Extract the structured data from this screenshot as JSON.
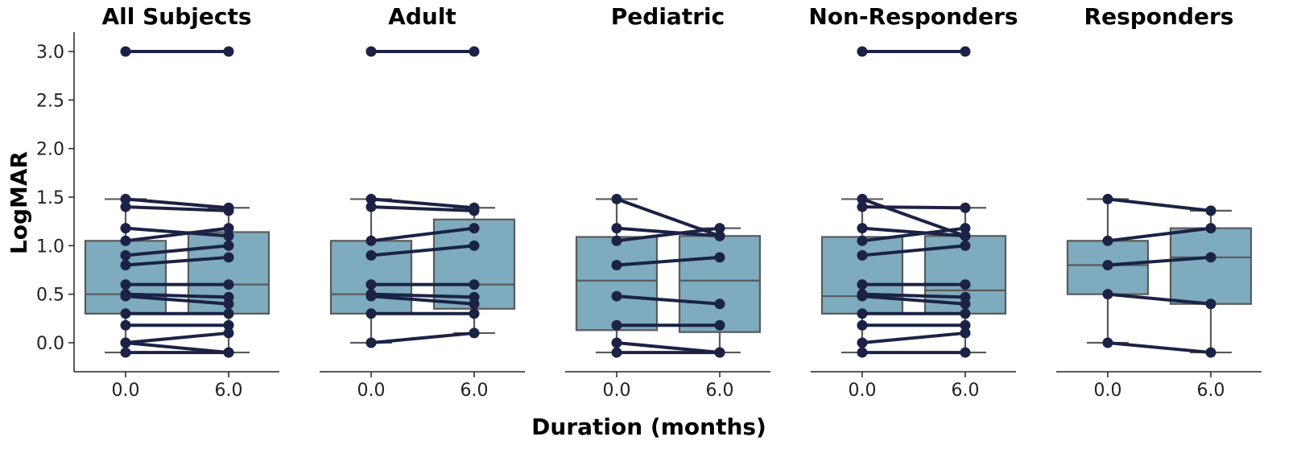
{
  "figure": {
    "xlabel": "Duration (months)",
    "ylabel": "LogMAR"
  },
  "colors": {
    "box_fill": "#7eabbd",
    "box_edge": "#5a5a5a",
    "line": "#1b2245",
    "point": "#1b2245"
  },
  "chart_data": {
    "type": "box",
    "x_categories": [
      "0.0",
      "6.0"
    ],
    "ylabel": "LogMAR",
    "xlabel": "Duration (months)",
    "ylim": [
      -0.3,
      3.2
    ],
    "yticks": [
      0.0,
      0.5,
      1.0,
      1.5,
      2.0,
      2.5,
      3.0
    ],
    "ytick_labels": [
      "0.0",
      "0.5",
      "1.0",
      "1.5",
      "2.0",
      "2.5",
      "3.0"
    ],
    "grid": false,
    "panels": [
      {
        "title": "All Subjects",
        "boxes": [
          {
            "x": "0.0",
            "whisker_low": -0.1,
            "q1": 0.3,
            "median": 0.5,
            "q3": 1.05,
            "whisker_high": 1.48
          },
          {
            "x": "6.0",
            "whisker_low": -0.1,
            "q1": 0.3,
            "median": 0.6,
            "q3": 1.14,
            "whisker_high": 1.39
          }
        ],
        "pairs": [
          [
            3.0,
            3.0
          ],
          [
            1.48,
            1.39
          ],
          [
            1.4,
            1.36
          ],
          [
            1.18,
            1.1
          ],
          [
            1.05,
            1.18
          ],
          [
            0.9,
            1.0
          ],
          [
            0.8,
            0.88
          ],
          [
            0.6,
            0.6
          ],
          [
            0.5,
            0.47
          ],
          [
            0.48,
            0.4
          ],
          [
            0.3,
            0.3
          ],
          [
            0.18,
            0.18
          ],
          [
            0.0,
            0.1
          ],
          [
            0.0,
            -0.1
          ],
          [
            -0.1,
            -0.1
          ]
        ]
      },
      {
        "title": "Adult",
        "boxes": [
          {
            "x": "0.0",
            "whisker_low": 0.0,
            "q1": 0.3,
            "median": 0.5,
            "q3": 1.05,
            "whisker_high": 1.48
          },
          {
            "x": "6.0",
            "whisker_low": 0.1,
            "q1": 0.35,
            "median": 0.6,
            "q3": 1.27,
            "whisker_high": 1.39
          }
        ],
        "pairs": [
          [
            3.0,
            3.0
          ],
          [
            1.48,
            1.39
          ],
          [
            1.4,
            1.36
          ],
          [
            1.05,
            1.18
          ],
          [
            0.9,
            1.0
          ],
          [
            0.6,
            0.6
          ],
          [
            0.5,
            0.47
          ],
          [
            0.48,
            0.4
          ],
          [
            0.3,
            0.3
          ],
          [
            0.0,
            0.1
          ]
        ]
      },
      {
        "title": "Pediatric",
        "boxes": [
          {
            "x": "0.0",
            "whisker_low": -0.1,
            "q1": 0.13,
            "median": 0.64,
            "q3": 1.09,
            "whisker_high": 1.48
          },
          {
            "x": "6.0",
            "whisker_low": -0.1,
            "q1": 0.11,
            "median": 0.64,
            "q3": 1.1,
            "whisker_high": 1.18
          }
        ],
        "pairs": [
          [
            1.48,
            1.1
          ],
          [
            1.18,
            1.1
          ],
          [
            1.05,
            1.18
          ],
          [
            0.8,
            0.88
          ],
          [
            0.48,
            0.4
          ],
          [
            0.18,
            0.18
          ],
          [
            0.0,
            -0.1
          ],
          [
            -0.1,
            -0.1
          ]
        ]
      },
      {
        "title": "Non-Responders",
        "boxes": [
          {
            "x": "0.0",
            "whisker_low": -0.1,
            "q1": 0.3,
            "median": 0.48,
            "q3": 1.09,
            "whisker_high": 1.48
          },
          {
            "x": "6.0",
            "whisker_low": -0.1,
            "q1": 0.3,
            "median": 0.54,
            "q3": 1.1,
            "whisker_high": 1.39
          }
        ],
        "pairs": [
          [
            3.0,
            3.0
          ],
          [
            1.48,
            1.1
          ],
          [
            1.4,
            1.39
          ],
          [
            1.18,
            1.1
          ],
          [
            1.05,
            1.18
          ],
          [
            0.9,
            1.0
          ],
          [
            0.6,
            0.6
          ],
          [
            0.5,
            0.47
          ],
          [
            0.48,
            0.4
          ],
          [
            0.3,
            0.3
          ],
          [
            0.18,
            0.18
          ],
          [
            0.0,
            0.1
          ],
          [
            -0.1,
            -0.1
          ]
        ]
      },
      {
        "title": "Responders",
        "boxes": [
          {
            "x": "0.0",
            "whisker_low": 0.0,
            "q1": 0.5,
            "median": 0.8,
            "q3": 1.05,
            "whisker_high": 1.48
          },
          {
            "x": "6.0",
            "whisker_low": -0.1,
            "q1": 0.4,
            "median": 0.88,
            "q3": 1.18,
            "whisker_high": 1.36
          }
        ],
        "pairs": [
          [
            1.48,
            1.36
          ],
          [
            1.05,
            1.18
          ],
          [
            0.8,
            0.88
          ],
          [
            0.5,
            0.4
          ],
          [
            0.0,
            -0.1
          ]
        ]
      }
    ]
  }
}
